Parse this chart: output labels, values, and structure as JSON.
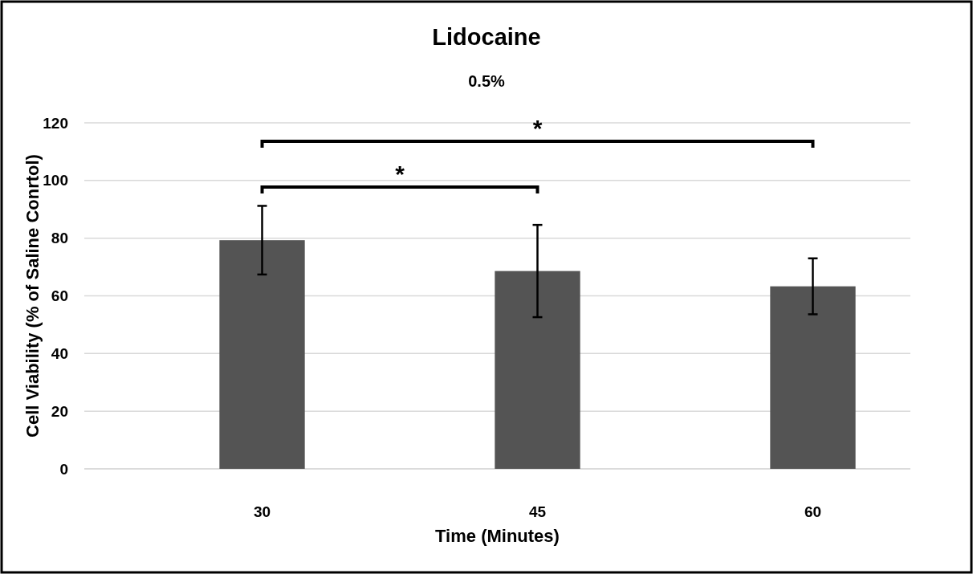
{
  "chart_data": {
    "type": "bar",
    "title": "Lidocaine",
    "subtitle": "0.5%",
    "xlabel": "Time (Minutes)",
    "ylabel": "Cell Viability (% of Saline Conrtol)",
    "categories": [
      "30",
      "45",
      "60"
    ],
    "values": [
      79.3,
      68.6,
      63.3
    ],
    "errors": [
      11.9,
      16.0,
      9.7
    ],
    "color": "#545454",
    "ylim": [
      0,
      120
    ],
    "yticks": [
      0,
      20,
      40,
      60,
      80,
      100,
      120
    ],
    "grid": "y",
    "annotations": [
      "*",
      "*"
    ]
  }
}
